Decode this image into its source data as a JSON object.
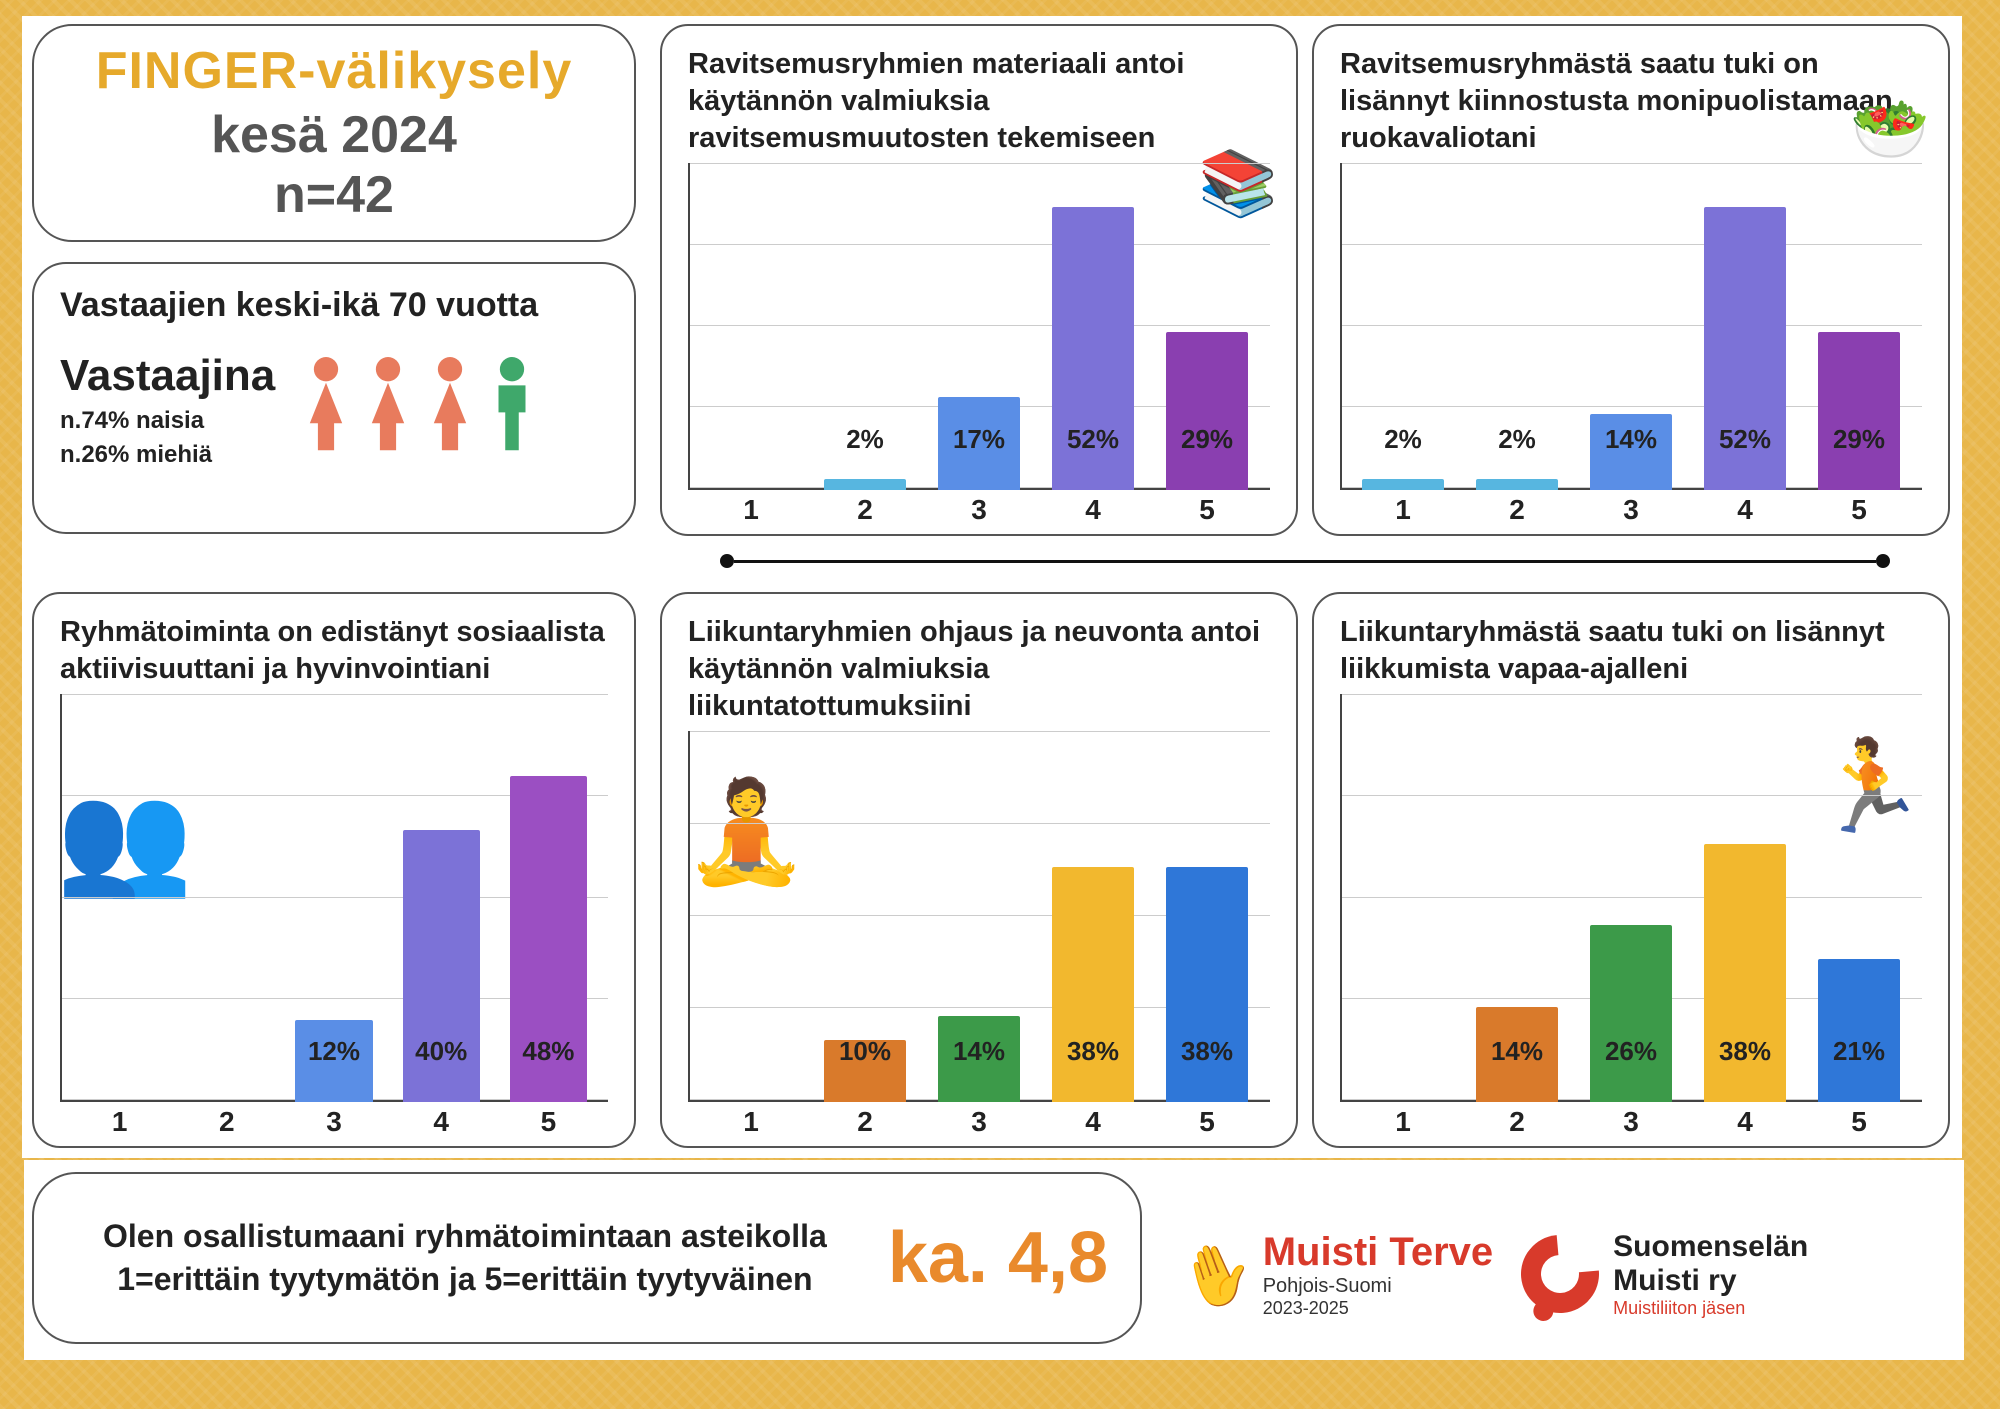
{
  "title": {
    "line1": "FINGER-välikysely",
    "line2": "kesä 2024",
    "line3": "n=42",
    "line1_color": "#e6a92b",
    "line_color": "#555555",
    "fontsize": 52
  },
  "demographics": {
    "age_text": "Vastaajien keski-ikä 70 vuotta",
    "respondents_heading": "Vastaajina",
    "women_pct": "n.74% naisia",
    "men_pct": "n.26% miehiä",
    "icon_female_color": "#e87b5d",
    "icon_male_color": "#3fa86b",
    "female_count": 3,
    "male_count": 1
  },
  "charts": {
    "ymax": 60,
    "grid_lines": 5,
    "grid_color": "#cccccc",
    "axis_color": "#444444",
    "xlabels": [
      "1",
      "2",
      "3",
      "4",
      "5"
    ],
    "label_fontsize": 26,
    "xaxis_fontsize": 28,
    "c1": {
      "title": "Ravitsemusryhmien materiaali antoi käytännön valmiuksia ravitsemusmuutosten tekemiseen",
      "values": [
        0,
        2,
        17,
        52,
        29
      ],
      "labels": [
        "",
        "2%",
        "17%",
        "52%",
        "29%"
      ],
      "colors": [
        "#57b6e0",
        "#57b6e0",
        "#5a8ee6",
        "#7c72d7",
        "#8a3fb0"
      ],
      "decor": "📚"
    },
    "c2": {
      "title": "Ravitsemusryhmästä saatu tuki on lisännyt kiinnostusta monipuolistamaan ruokavaliotani",
      "values": [
        2,
        2,
        14,
        52,
        29
      ],
      "labels": [
        "2%",
        "2%",
        "14%",
        "52%",
        "29%"
      ],
      "colors": [
        "#57b6e0",
        "#57b6e0",
        "#5a8ee6",
        "#7c72d7",
        "#8a3fb0"
      ],
      "decor": "🥗"
    },
    "c3": {
      "title": "Ryhmätoiminta on edistänyt sosiaalista aktiivisuuttani ja hyvinvointiani",
      "values": [
        0,
        0,
        12,
        40,
        48
      ],
      "labels": [
        "",
        "",
        "12%",
        "40%",
        "48%"
      ],
      "colors": [
        "#57b6e0",
        "#57b6e0",
        "#5a8ee6",
        "#7c72d7",
        "#9b4fc2"
      ],
      "decor": "👥"
    },
    "c4": {
      "title": "Liikuntaryhmien ohjaus ja neuvonta antoi käytännön valmiuksia liikuntatottumuksiini",
      "values": [
        0,
        10,
        14,
        38,
        38
      ],
      "labels": [
        "",
        "10%",
        "14%",
        "38%",
        "38%"
      ],
      "colors": [
        "#d97a2b",
        "#d97a2b",
        "#3c9a49",
        "#f2b82e",
        "#2f77d8"
      ],
      "decor": "🧘"
    },
    "c5": {
      "title": "Liikuntaryhmästä saatu tuki on lisännyt liikkumista vapaa-ajalleni",
      "values": [
        0,
        14,
        26,
        38,
        21
      ],
      "labels": [
        "",
        "14%",
        "26%",
        "38%",
        "21%"
      ],
      "colors": [
        "#d97a2b",
        "#d97a2b",
        "#3c9a49",
        "#f2b82e",
        "#2f77d8"
      ],
      "decor": "🏃"
    }
  },
  "summary": {
    "text": "Olen osallistumaani ryhmätoimintaan asteikolla 1=erittäin tyytymätön ja 5=erittäin tyytyväinen",
    "avg_label": "ka. 4,8",
    "avg_color": "#e98a2c"
  },
  "logos": {
    "muisti_terve": {
      "line1": "Muisti Terve",
      "line2": "Pohjois-Suomi",
      "line3": "2023-2025",
      "color": "#d83a2b"
    },
    "suomenselan": {
      "line1": "Suomenselän",
      "line2": "Muisti ry",
      "line3": "Muistiliiton jäsen",
      "accent": "#d83a2b"
    }
  },
  "background_color": "#e8b64a",
  "card_border_color": "#555555",
  "card_bg": "#ffffff"
}
